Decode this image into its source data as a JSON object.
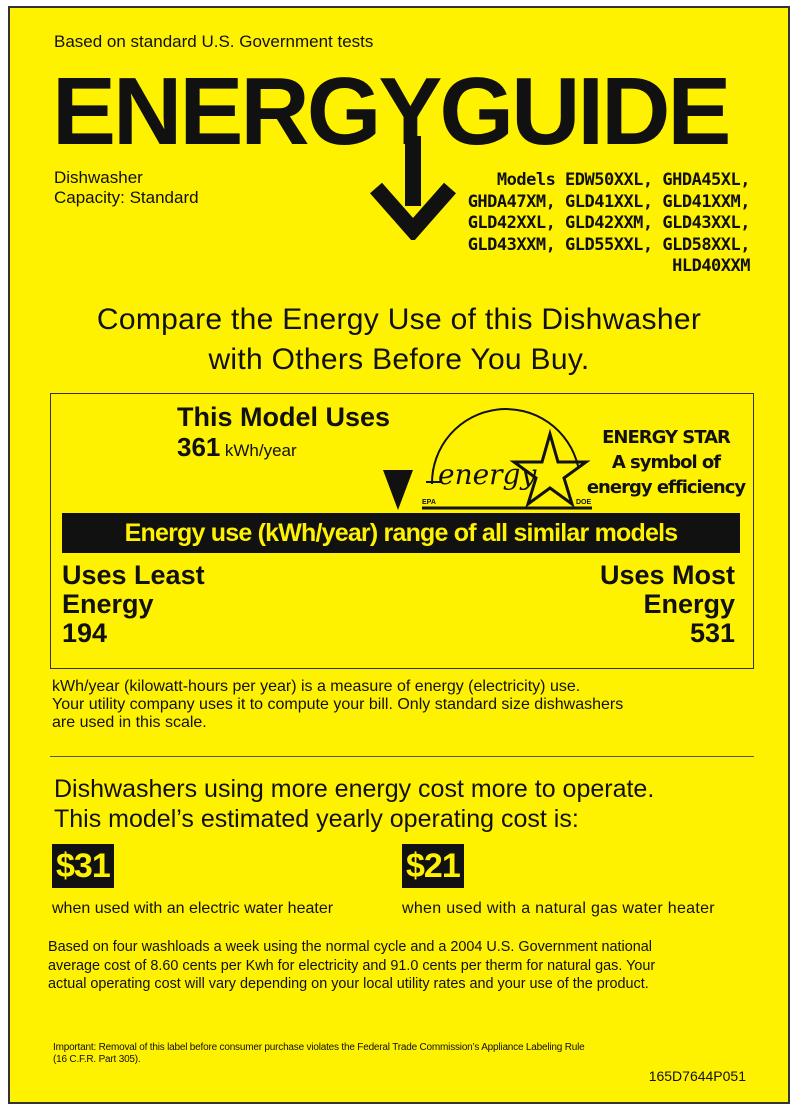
{
  "header": {
    "tests_note": "Based on standard U.S. Government tests",
    "title": "ENERGYGUIDE",
    "appliance_type": "Dishwasher",
    "capacity": "Capacity: Standard",
    "models": [
      "Models EDW50XXL, GHDA45XL,",
      "GHDA47XM, GLD41XXL, GLD41XXM,",
      "GLD42XXL, GLD42XXM, GLD43XXL,",
      "GLD43XXM, GLD55XXL, GLD58XXL,",
      "HLD40XXM"
    ]
  },
  "compare": [
    "Compare the Energy Use of this Dishwasher",
    "with Others Before You Buy."
  ],
  "usage": {
    "heading": "This Model Uses",
    "value": "361",
    "unit": "kWh/year",
    "energy_star": {
      "line1": "ENERGY STAR",
      "line2": "A symbol of",
      "line3": "energy efficiency",
      "logo_text": "energy",
      "epa": "EPA",
      "doe": "DOE"
    },
    "range_title": "Energy use (kWh/year) range of all similar models",
    "least_label": [
      "Uses Least",
      "Energy"
    ],
    "least_value": "194",
    "most_label": [
      "Uses Most",
      "Energy"
    ],
    "most_value": "531",
    "range_min": 194,
    "range_max": 531,
    "model_value": 361
  },
  "explanation": [
    "kWh/year (kilowatt-hours per year) is a measure of energy (electricity) use.",
    "Your utility company uses it to compute your bill. Only standard size dishwashers",
    "are used in this scale."
  ],
  "cost": {
    "heading": [
      "Dishwashers using more energy cost more to operate.",
      "This model’s estimated yearly operating cost is:"
    ],
    "electric_value": "$31",
    "electric_label": "when used with an electric water heater",
    "gas_value": "$21",
    "gas_label": "when used with a natural gas water heater"
  },
  "basis": [
    "Based on four washloads a week using the normal cycle and a 2004 U.S. Government national",
    "average cost of 8.60 cents per Kwh for electricity and 91.0 cents per therm for natural gas. Your",
    "actual operating cost will vary depending on your local utility rates and your use of the product."
  ],
  "footer": {
    "important": [
      "Important: Removal of this label before consumer purchase violates the Federal Trade Commission’s Appliance Labeling Rule",
      "(16 C.F.R. Part 305)."
    ],
    "code": "165D7644P051"
  },
  "colors": {
    "background": "#fff200",
    "ink": "#111111"
  }
}
